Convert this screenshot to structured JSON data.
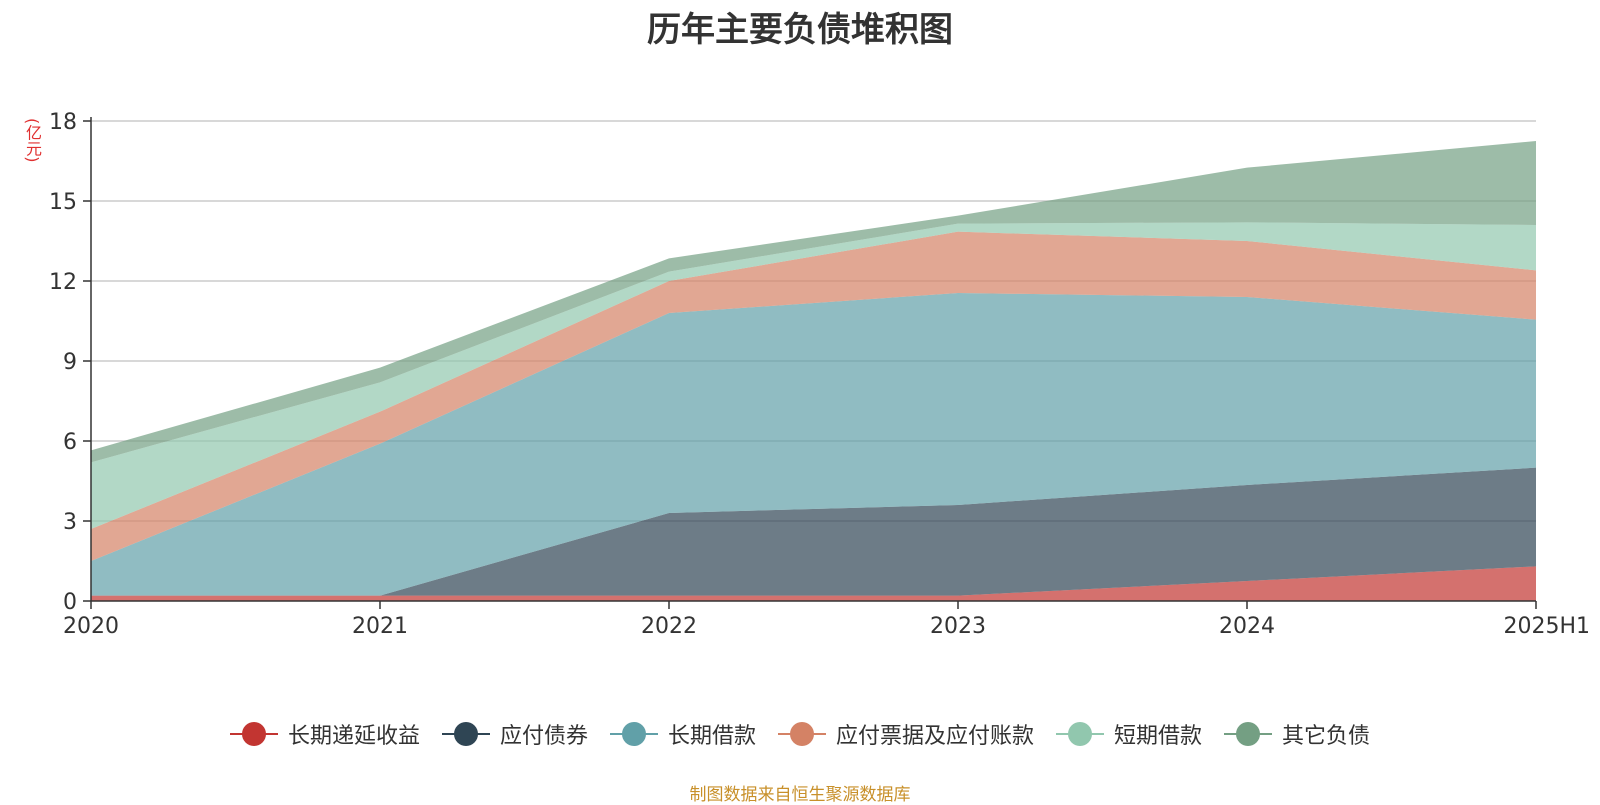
{
  "title": "历年主要负债堆积图",
  "unit": "(亿元)",
  "source": "制图数据来自恒生聚源数据库",
  "chart_data": {
    "type": "area",
    "stacked": true,
    "x": [
      "2020",
      "2021",
      "2022",
      "2023",
      "2024",
      "2025H1"
    ],
    "ylim": [
      0,
      18
    ],
    "yticks": [
      0,
      3,
      6,
      9,
      12,
      15,
      18
    ],
    "grid": true,
    "legend_position": "bottom",
    "series": [
      {
        "name": "长期递延收益",
        "color": "#c23531",
        "values": [
          0.2,
          0.2,
          0.2,
          0.2,
          0.75,
          1.3
        ]
      },
      {
        "name": "应付债券",
        "color": "#2f4554",
        "values": [
          0.0,
          0.0,
          3.1,
          3.4,
          3.6,
          3.7
        ]
      },
      {
        "name": "长期借款",
        "color": "#61a0a8",
        "values": [
          1.3,
          5.7,
          7.5,
          7.95,
          7.05,
          5.55
        ]
      },
      {
        "name": "应付票据及应付账款",
        "color": "#d48265",
        "values": [
          1.2,
          1.2,
          1.2,
          2.3,
          2.1,
          1.85
        ]
      },
      {
        "name": "短期借款",
        "color": "#91c7ae",
        "values": [
          2.5,
          1.1,
          0.35,
          0.3,
          0.7,
          1.7
        ]
      },
      {
        "name": "其它负债",
        "color": "#749f83",
        "values": [
          0.45,
          0.55,
          0.5,
          0.3,
          2.05,
          3.15
        ]
      }
    ]
  }
}
